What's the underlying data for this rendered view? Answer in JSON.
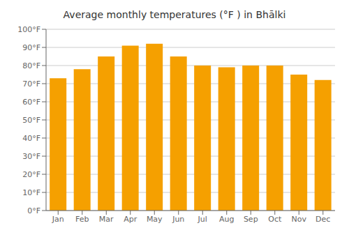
{
  "chart_data": {
    "type": "bar",
    "title": "Average monthly temperatures (°F ) in Bhālki",
    "categories": [
      "Jan",
      "Feb",
      "Mar",
      "Apr",
      "May",
      "Jun",
      "Jul",
      "Aug",
      "Sep",
      "Oct",
      "Nov",
      "Dec"
    ],
    "values": [
      73,
      78,
      85,
      91,
      92,
      85,
      80,
      79,
      80,
      80,
      75,
      72
    ],
    "color": "#F5A000",
    "ylim": [
      0,
      100
    ],
    "yticks": [
      {
        "value": 0,
        "label": "0°F"
      },
      {
        "value": 10,
        "label": "10°F"
      },
      {
        "value": 20,
        "label": "20°F"
      },
      {
        "value": 30,
        "label": "30°F"
      },
      {
        "value": 40,
        "label": "40°F"
      },
      {
        "value": 50,
        "label": "50°F"
      },
      {
        "value": 60,
        "label": "60°F"
      },
      {
        "value": 70,
        "label": "70°F"
      },
      {
        "value": 80,
        "label": "80°F"
      },
      {
        "value": 90,
        "label": "90°F"
      },
      {
        "value": 100,
        "label": "100°F"
      }
    ],
    "grid": true
  }
}
